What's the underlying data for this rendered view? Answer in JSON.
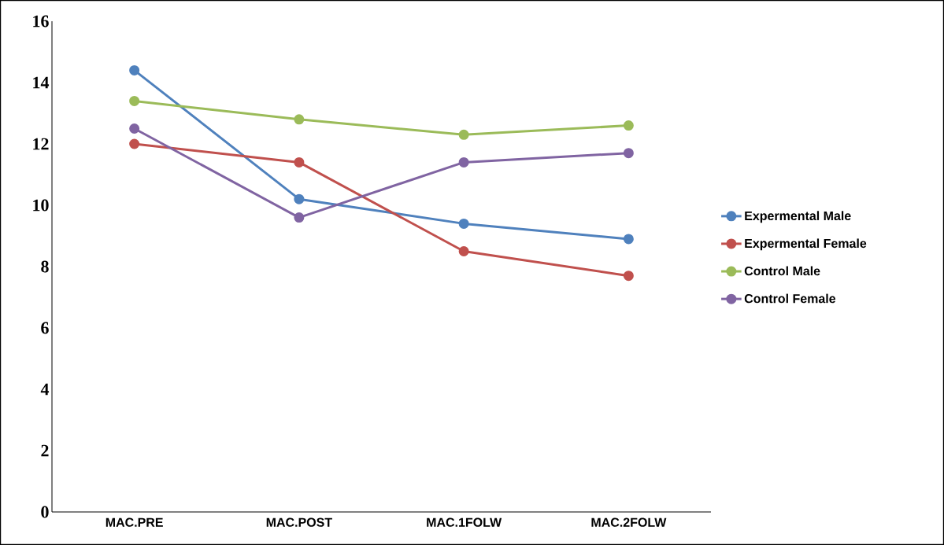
{
  "chart_data": {
    "type": "line",
    "categories": [
      "MAC.PRE",
      "MAC.POST",
      "MAC.1FOLW",
      "MAC.2FOLW"
    ],
    "series": [
      {
        "name": "Expermental Male",
        "color": "#4f81bd",
        "values": [
          14.4,
          10.2,
          9.4,
          8.9
        ]
      },
      {
        "name": "Expermental Female",
        "color": "#c0504d",
        "values": [
          12.0,
          11.4,
          8.5,
          7.7
        ]
      },
      {
        "name": "Control Male",
        "color": "#9bbb59",
        "values": [
          13.4,
          12.8,
          12.3,
          12.6
        ]
      },
      {
        "name": "Control Female",
        "color": "#8064a2",
        "values": [
          12.5,
          9.6,
          11.4,
          11.7
        ]
      }
    ],
    "ylim": [
      0,
      16
    ],
    "yticks": [
      0,
      2,
      4,
      6,
      8,
      10,
      12,
      14,
      16
    ],
    "grid": false,
    "legend": "right",
    "marker": "circle",
    "line_style": "solid"
  }
}
